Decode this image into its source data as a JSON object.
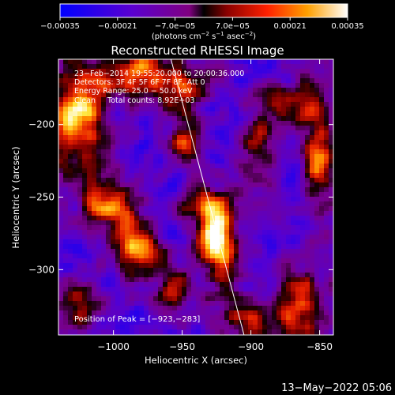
{
  "chart_data": {
    "type": "heatmap",
    "title": "Reconstructed RHESSI Image",
    "xlabel": "Heliocentric X (arcsec)",
    "ylabel": "Heliocentric Y (arcsec)",
    "xlim": [
      -1040,
      -840
    ],
    "ylim": [
      -345,
      -155
    ],
    "xticks": [
      -1000,
      -950,
      -900,
      -850
    ],
    "xtick_labels": [
      "−1000",
      "−950",
      "−900",
      "−850"
    ],
    "yticks": [
      -200,
      -250,
      -300
    ],
    "ytick_labels": [
      "−200",
      "−250",
      "−300"
    ],
    "colorbar": {
      "range": [
        -0.00035,
        0.00035
      ],
      "ticks": [
        -0.00035,
        -0.00021,
        -7e-05,
        7e-05,
        0.00021,
        0.00035
      ],
      "tick_labels": [
        "−0.00035",
        "−0.00021",
        "−7.0e−05",
        "7.0e−05",
        "0.00021",
        "0.00035"
      ],
      "unit_parts": [
        "(photons cm",
        "−2",
        " s",
        "−1",
        " asec",
        "−2",
        ")"
      ]
    },
    "annotations": [
      "23−Feb−2014 19:55:20.000 to 20:00:36.000",
      "Detectors: 3F 4F 5F 6F 7F 8F, Att 0",
      "Energy Range: 25.0 − 50.0 keV",
      "Clean     Total counts: 8.92E+03"
    ],
    "peak_label": "Position of Peak = [−923,−283]",
    "peak": [
      -923,
      -283
    ],
    "limb_line": [
      [
        -959,
        -152
      ],
      [
        -905,
        -345
      ]
    ],
    "bright_regions": [
      {
        "x": -923,
        "y": -283,
        "amp": 1.0,
        "sx": 9,
        "sy": 16
      },
      {
        "x": -930,
        "y": -258,
        "amp": 0.55,
        "sx": 14,
        "sy": 12
      },
      {
        "x": -985,
        "y": -285,
        "amp": 0.75,
        "sx": 12,
        "sy": 14
      },
      {
        "x": -1005,
        "y": -255,
        "amp": 0.7,
        "sx": 14,
        "sy": 12
      },
      {
        "x": -1025,
        "y": -195,
        "amp": 0.9,
        "sx": 14,
        "sy": 24
      },
      {
        "x": -985,
        "y": -165,
        "amp": 0.7,
        "sx": 22,
        "sy": 12
      },
      {
        "x": -950,
        "y": -175,
        "amp": 0.55,
        "sx": 10,
        "sy": 14
      },
      {
        "x": -948,
        "y": -215,
        "amp": 0.55,
        "sx": 8,
        "sy": 10
      },
      {
        "x": -895,
        "y": -215,
        "amp": 0.5,
        "sx": 10,
        "sy": 18
      },
      {
        "x": -865,
        "y": -185,
        "amp": 0.55,
        "sx": 14,
        "sy": 10
      },
      {
        "x": -850,
        "y": -225,
        "amp": 0.65,
        "sx": 8,
        "sy": 26
      },
      {
        "x": -862,
        "y": -325,
        "amp": 0.65,
        "sx": 12,
        "sy": 16
      },
      {
        "x": -905,
        "y": -332,
        "amp": 0.55,
        "sx": 16,
        "sy": 10
      },
      {
        "x": -955,
        "y": -315,
        "amp": 0.45,
        "sx": 10,
        "sy": 12
      },
      {
        "x": -1025,
        "y": -325,
        "amp": 0.45,
        "sx": 12,
        "sy": 12
      }
    ]
  },
  "footer": {
    "timestamp": "13−May−2022 05:06"
  }
}
